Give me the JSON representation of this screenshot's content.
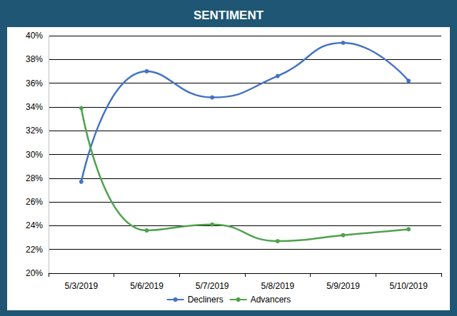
{
  "chart_data": {
    "type": "line",
    "title": "SENTIMENT",
    "categories": [
      "5/3/2019",
      "5/6/2019",
      "5/7/2019",
      "5/8/2019",
      "5/9/2019",
      "5/10/2019"
    ],
    "series": [
      {
        "name": "Decliners",
        "color": "#4472c4",
        "values": [
          27.7,
          37.0,
          34.8,
          36.6,
          39.4,
          36.2
        ]
      },
      {
        "name": "Advancers",
        "color": "#4ea24e",
        "values": [
          33.9,
          23.6,
          24.1,
          22.7,
          23.2,
          23.7
        ]
      }
    ],
    "ylim": [
      20,
      40
    ],
    "yticks": [
      {
        "value": 20,
        "label": "20%"
      },
      {
        "value": 22,
        "label": "22%"
      },
      {
        "value": 24,
        "label": "24%"
      },
      {
        "value": 26,
        "label": "26%"
      },
      {
        "value": 28,
        "label": "28%"
      },
      {
        "value": 30,
        "label": "30%"
      },
      {
        "value": 32,
        "label": "32%"
      },
      {
        "value": 34,
        "label": "34%"
      },
      {
        "value": 36,
        "label": "36%"
      },
      {
        "value": 38,
        "label": "38%"
      },
      {
        "value": 40,
        "label": "40%"
      }
    ],
    "grid": true,
    "legend": "bottom",
    "marker": "circle",
    "line_style": "smooth"
  }
}
